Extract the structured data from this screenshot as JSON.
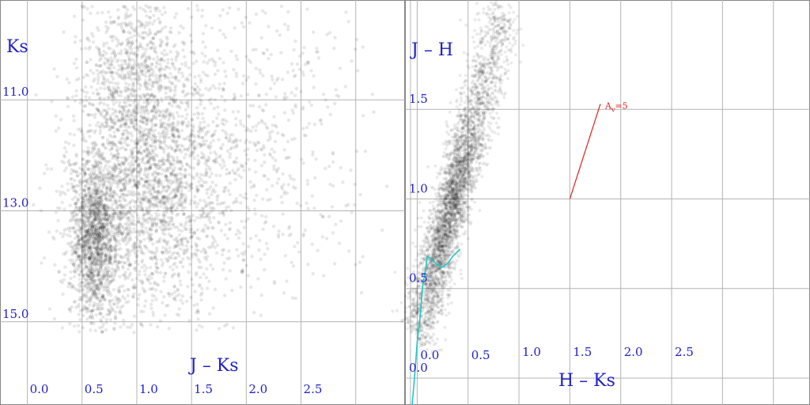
{
  "chart_data": [
    {
      "type": "scatter",
      "title": "",
      "xlabel": "J – Ks",
      "ylabel": "Ks",
      "xlim": [
        -0.25,
        3.45
      ],
      "ylim": [
        16.5,
        9.2
      ],
      "y_inverted": true,
      "grid": true,
      "point_color": "#000000",
      "x_ticks": [
        {
          "value": 0.0,
          "label": "0.0"
        },
        {
          "value": 0.5,
          "label": "0.5"
        },
        {
          "value": 1.0,
          "label": "1.0"
        },
        {
          "value": 1.5,
          "label": "1.5"
        },
        {
          "value": 2.0,
          "label": "2.0"
        },
        {
          "value": 2.5,
          "label": "2.5"
        }
      ],
      "y_ticks": [
        {
          "value": 11.0,
          "label": "11.0"
        },
        {
          "value": 13.0,
          "label": "13.0"
        },
        {
          "value": 15.0,
          "label": "15.0"
        }
      ],
      "density_components": [
        {
          "name": "dwarf-sequence",
          "x_center": 0.62,
          "y_center": 13.5,
          "x_sigma": 0.12,
          "y_sigma": 0.75,
          "weight": 0.3
        },
        {
          "name": "giant-branch",
          "x_center": 1.15,
          "y_center": 12.6,
          "x_sigma": 0.35,
          "y_sigma": 1.2,
          "weight": 0.4
        },
        {
          "name": "bright-plume",
          "x_center": 0.95,
          "y_center": 10.6,
          "x_sigma": 0.22,
          "y_sigma": 0.9,
          "weight": 0.15
        },
        {
          "name": "red-tail",
          "x_center": 1.9,
          "y_center": 11.8,
          "x_sigma": 0.6,
          "y_sigma": 1.5,
          "weight": 0.15
        }
      ]
    },
    {
      "type": "scatter",
      "title": "",
      "xlabel": "H – Ks",
      "ylabel": "J – H",
      "xlim": [
        -0.12,
        3.86
      ],
      "ylim": [
        -0.15,
        2.11
      ],
      "grid": true,
      "point_color": "#000000",
      "x_ticks": [
        {
          "value": 0.0,
          "label": "0.0"
        },
        {
          "value": 0.5,
          "label": "0.5"
        },
        {
          "value": 1.0,
          "label": "1.0"
        },
        {
          "value": 1.5,
          "label": "1.5"
        },
        {
          "value": 2.0,
          "label": "2.0"
        },
        {
          "value": 2.5,
          "label": "2.5"
        }
      ],
      "y_ticks": [
        {
          "value": 0.0,
          "label": "0.0"
        },
        {
          "value": 0.5,
          "label": "0.5"
        },
        {
          "value": 1.0,
          "label": "1.0"
        },
        {
          "value": 1.5,
          "label": "1.5"
        }
      ],
      "density_ridge": {
        "start": {
          "x": 0.0,
          "y": 0.25
        },
        "end": {
          "x": 0.85,
          "y": 2.05
        },
        "peak": {
          "x": 0.3,
          "y": 0.95
        },
        "cross_width": 0.07
      },
      "intrinsic_locus": {
        "name": "intrinsic-colour-locus",
        "color": "#20c8c8",
        "x": [
          -0.05,
          -0.02,
          0.0,
          0.03,
          0.05,
          0.08,
          0.1,
          0.15,
          0.2,
          0.25,
          0.3,
          0.35,
          0.42
        ],
        "y": [
          -0.15,
          0.05,
          0.2,
          0.35,
          0.5,
          0.6,
          0.68,
          0.66,
          0.63,
          0.62,
          0.64,
          0.68,
          0.72
        ]
      },
      "reddening_vector": {
        "label": "A",
        "subscript": "v",
        "value_text": "=5",
        "color": "#e02020",
        "x": [
          1.5,
          1.8
        ],
        "y": [
          1.0,
          1.53
        ]
      }
    }
  ]
}
